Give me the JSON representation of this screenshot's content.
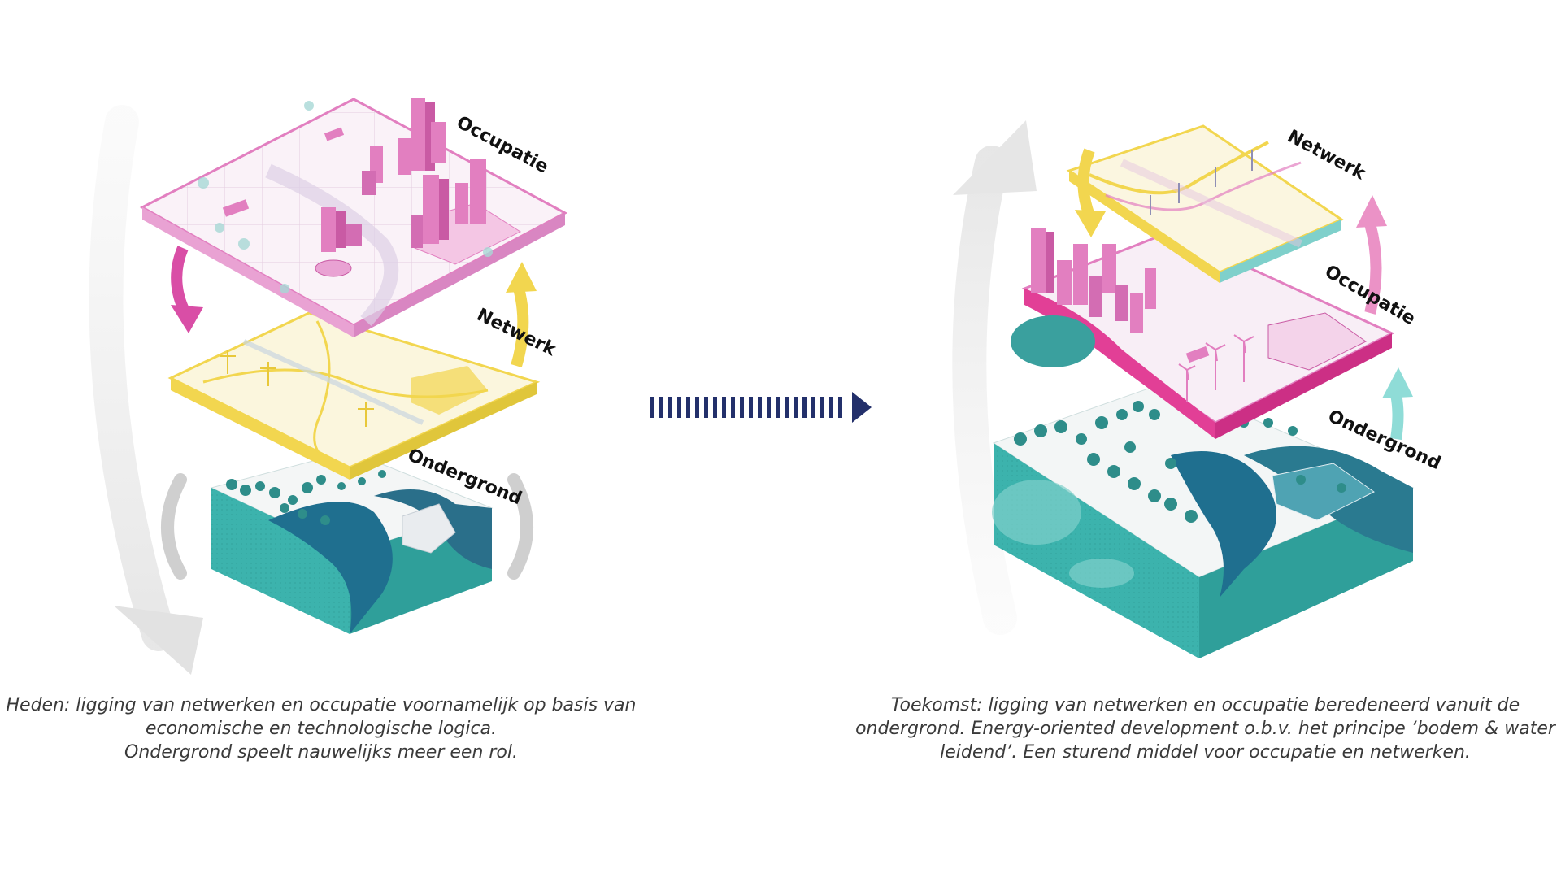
{
  "left_diagram": {
    "labels": {
      "top": "Occupatie",
      "middle": "Netwerk",
      "bottom": "Ondergrond"
    },
    "caption": [
      "Heden: ligging van netwerken en occupatie voornamelijk op basis van",
      "economische en technologische logica.",
      "Ondergrond speelt nauwelijks meer een rol."
    ]
  },
  "right_diagram": {
    "labels": {
      "top": "Netwerk",
      "middle": "Occupatie",
      "bottom": "Ondergrond"
    },
    "caption": [
      "Toekomst: ligging van netwerken en occupatie beredeneerd vanuit de",
      "ondergrond. Energy-oriented development o.b.v. het principe ‘bodem & water",
      "leidend’. Een sturend middel voor occupatie en netwerken."
    ]
  },
  "colors": {
    "occupatie": "#e27fc0",
    "netwerk": "#f2d64f",
    "ondergrond_teal": "#3cb3ad",
    "water": "#1f6f8f",
    "transition_arrow": "#23306b"
  },
  "icons": [
    "circular-arrow-icon",
    "transition-arrow-icon",
    "tree-icon",
    "building-icon",
    "wind-turbine-icon",
    "power-pylon-icon"
  ]
}
